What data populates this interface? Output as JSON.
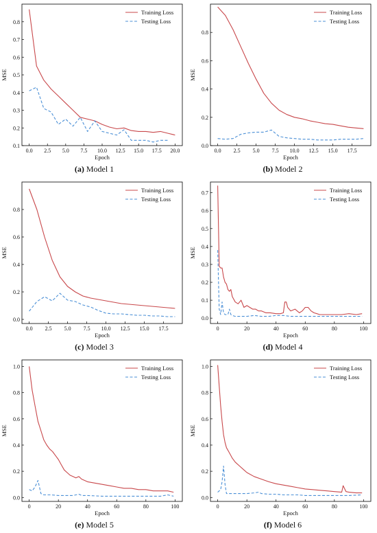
{
  "colors": {
    "training": "#c8474a",
    "testing": "#4a8fd6"
  },
  "chart_data": [
    {
      "type": "line",
      "caption_letter": "(a)",
      "caption_text": " Model 1",
      "xlabel": "Epoch",
      "ylabel": "MSE",
      "xlim": [
        -1,
        21
      ],
      "ylim": [
        0.1,
        0.9
      ],
      "xticks": [
        0.0,
        2.5,
        5.0,
        7.5,
        10.0,
        12.5,
        15.0,
        17.5,
        20.0
      ],
      "xtick_labels": [
        "0.0",
        "2.5",
        "5.0",
        "7.5",
        "10.0",
        "12.5",
        "15.0",
        "17.5",
        "20.0"
      ],
      "yticks": [
        0.1,
        0.2,
        0.3,
        0.4,
        0.5,
        0.6,
        0.7,
        0.8
      ],
      "ytick_labels": [
        "0.1",
        "0.2",
        "0.3",
        "0.4",
        "0.5",
        "0.6",
        "0.7",
        "0.8"
      ],
      "legend": "top-right",
      "series": [
        {
          "name": "Training Loss",
          "style": "solid",
          "x": [
            0,
            1,
            2,
            3,
            4,
            5,
            6,
            7,
            8,
            9,
            10,
            11,
            12,
            13,
            14,
            15,
            16,
            17,
            18,
            19,
            20
          ],
          "y": [
            0.87,
            0.55,
            0.47,
            0.42,
            0.38,
            0.34,
            0.3,
            0.26,
            0.25,
            0.24,
            0.22,
            0.205,
            0.195,
            0.2,
            0.185,
            0.18,
            0.18,
            0.175,
            0.18,
            0.17,
            0.16
          ]
        },
        {
          "name": "Testing Loss",
          "style": "dashed",
          "x": [
            0,
            1,
            2,
            3,
            4,
            5,
            6,
            7,
            8,
            9,
            10,
            11,
            12,
            13,
            14,
            15,
            16,
            17,
            18,
            19
          ],
          "y": [
            0.41,
            0.43,
            0.31,
            0.29,
            0.22,
            0.25,
            0.21,
            0.26,
            0.18,
            0.24,
            0.18,
            0.17,
            0.16,
            0.19,
            0.13,
            0.13,
            0.13,
            0.12,
            0.13,
            0.13
          ]
        }
      ]
    },
    {
      "type": "line",
      "caption_letter": "(b)",
      "caption_text": " Model 2",
      "xlabel": "Epoch",
      "ylabel": "MSE",
      "xlim": [
        -0.95,
        19.95
      ],
      "ylim": [
        0.0,
        1.0
      ],
      "xticks": [
        0.0,
        2.5,
        5.0,
        7.5,
        10.0,
        12.5,
        15.0,
        17.5
      ],
      "xtick_labels": [
        "0.0",
        "2.5",
        "5.0",
        "7.5",
        "10.0",
        "12.5",
        "15.0",
        "17.5"
      ],
      "yticks": [
        0.0,
        0.2,
        0.4,
        0.6,
        0.8
      ],
      "ytick_labels": [
        "0.0",
        "0.2",
        "0.4",
        "0.6",
        "0.8"
      ],
      "legend": "top-right",
      "series": [
        {
          "name": "Training Loss",
          "style": "solid",
          "x": [
            0,
            1,
            2,
            3,
            4,
            5,
            6,
            7,
            8,
            9,
            10,
            11,
            12,
            13,
            14,
            15,
            16,
            17,
            18,
            19
          ],
          "y": [
            0.98,
            0.92,
            0.82,
            0.7,
            0.58,
            0.47,
            0.37,
            0.3,
            0.25,
            0.22,
            0.2,
            0.19,
            0.175,
            0.165,
            0.155,
            0.15,
            0.14,
            0.13,
            0.125,
            0.12
          ]
        },
        {
          "name": "Testing Loss",
          "style": "dashed",
          "x": [
            0,
            1,
            2,
            3,
            4,
            5,
            6,
            7,
            8,
            9,
            10,
            11,
            12,
            13,
            14,
            15,
            16,
            17,
            18,
            19
          ],
          "y": [
            0.05,
            0.045,
            0.05,
            0.08,
            0.09,
            0.095,
            0.095,
            0.11,
            0.065,
            0.055,
            0.05,
            0.045,
            0.045,
            0.04,
            0.04,
            0.04,
            0.045,
            0.045,
            0.045,
            0.05
          ]
        }
      ]
    },
    {
      "type": "line",
      "caption_letter": "(c)",
      "caption_text": " Model 3",
      "xlabel": "Epoch",
      "ylabel": "MSE",
      "xlim": [
        -0.95,
        19.95
      ],
      "ylim": [
        -0.03,
        1.0
      ],
      "xticks": [
        0.0,
        2.5,
        5.0,
        7.5,
        10.0,
        12.5,
        15.0,
        17.5
      ],
      "xtick_labels": [
        "0.0",
        "2.5",
        "5.0",
        "7.5",
        "10.0",
        "12.5",
        "15.0",
        "17.5"
      ],
      "yticks": [
        0.0,
        0.2,
        0.4,
        0.6,
        0.8
      ],
      "ytick_labels": [
        "0.0",
        "0.2",
        "0.4",
        "0.6",
        "0.8"
      ],
      "legend": "top-right",
      "series": [
        {
          "name": "Training Loss",
          "style": "solid",
          "x": [
            0,
            1,
            2,
            3,
            4,
            5,
            6,
            7,
            8,
            9,
            10,
            11,
            12,
            13,
            14,
            15,
            16,
            17,
            18,
            19
          ],
          "y": [
            0.95,
            0.8,
            0.6,
            0.43,
            0.31,
            0.24,
            0.2,
            0.17,
            0.155,
            0.145,
            0.135,
            0.125,
            0.115,
            0.11,
            0.105,
            0.1,
            0.095,
            0.09,
            0.085,
            0.08
          ]
        },
        {
          "name": "Testing Loss",
          "style": "dashed",
          "x": [
            0,
            1,
            2,
            3,
            4,
            5,
            6,
            7,
            8,
            9,
            10,
            11,
            12,
            13,
            14,
            15,
            16,
            17,
            18,
            19
          ],
          "y": [
            0.06,
            0.13,
            0.165,
            0.135,
            0.19,
            0.14,
            0.13,
            0.105,
            0.09,
            0.065,
            0.045,
            0.04,
            0.04,
            0.035,
            0.03,
            0.03,
            0.025,
            0.025,
            0.02,
            0.02
          ]
        }
      ]
    },
    {
      "type": "line",
      "caption_letter": "(d)",
      "caption_text": " Model 4",
      "xlabel": "Epoch",
      "ylabel": "MSE",
      "xlim": [
        -5,
        105
      ],
      "ylim": [
        -0.03,
        0.76
      ],
      "xticks": [
        0,
        20,
        40,
        60,
        80,
        100
      ],
      "xtick_labels": [
        "0",
        "20",
        "40",
        "60",
        "80",
        "100"
      ],
      "yticks": [
        0.0,
        0.1,
        0.2,
        0.3,
        0.4,
        0.5,
        0.6,
        0.7
      ],
      "ytick_labels": [
        "0.0",
        "0.1",
        "0.2",
        "0.3",
        "0.4",
        "0.5",
        "0.6",
        "0.7"
      ],
      "legend": "top-right",
      "series": [
        {
          "name": "Training Loss",
          "style": "solid",
          "x": [
            0,
            1,
            2,
            3,
            4,
            5,
            6,
            7,
            8,
            9,
            10,
            12,
            14,
            16,
            18,
            20,
            22,
            24,
            26,
            28,
            30,
            33,
            36,
            40,
            43,
            45,
            46,
            47,
            48,
            50,
            53,
            56,
            58,
            60,
            62,
            64,
            66,
            68,
            70,
            75,
            80,
            85,
            90,
            95,
            99
          ],
          "y": [
            0.74,
            0.29,
            0.28,
            0.28,
            0.23,
            0.2,
            0.19,
            0.16,
            0.15,
            0.16,
            0.12,
            0.09,
            0.08,
            0.1,
            0.06,
            0.07,
            0.06,
            0.05,
            0.05,
            0.04,
            0.04,
            0.03,
            0.03,
            0.025,
            0.025,
            0.03,
            0.09,
            0.09,
            0.06,
            0.04,
            0.05,
            0.03,
            0.04,
            0.06,
            0.06,
            0.04,
            0.03,
            0.025,
            0.02,
            0.02,
            0.02,
            0.02,
            0.025,
            0.02,
            0.025
          ]
        },
        {
          "name": "Testing Loss",
          "style": "dashed",
          "x": [
            0,
            1,
            2,
            3,
            4,
            5,
            6,
            7,
            8,
            9,
            10,
            12,
            15,
            18,
            20,
            25,
            30,
            35,
            40,
            45,
            50,
            55,
            60,
            65,
            70,
            80,
            90,
            99
          ],
          "y": [
            0.38,
            0.05,
            0.02,
            0.09,
            0.03,
            0.02,
            0.02,
            0.02,
            0.05,
            0.02,
            0.015,
            0.01,
            0.01,
            0.01,
            0.01,
            0.015,
            0.01,
            0.01,
            0.015,
            0.015,
            0.01,
            0.01,
            0.01,
            0.01,
            0.01,
            0.01,
            0.01,
            0.01
          ]
        }
      ]
    },
    {
      "type": "line",
      "caption_letter": "(e)",
      "caption_text": " Model 5",
      "xlabel": "Epoch",
      "ylabel": "MSE",
      "xlim": [
        -5,
        105
      ],
      "ylim": [
        -0.03,
        1.05
      ],
      "xticks": [
        0,
        20,
        40,
        60,
        80,
        100
      ],
      "xtick_labels": [
        "0",
        "20",
        "40",
        "60",
        "80",
        "100"
      ],
      "yticks": [
        0.0,
        0.2,
        0.4,
        0.6,
        0.8,
        1.0
      ],
      "ytick_labels": [
        "0.0",
        "0.2",
        "0.4",
        "0.6",
        "0.8",
        "1.0"
      ],
      "legend": "top-right",
      "series": [
        {
          "name": "Training Loss",
          "style": "solid",
          "x": [
            0,
            2,
            4,
            6,
            8,
            10,
            12,
            14,
            16,
            18,
            20,
            22,
            24,
            26,
            28,
            30,
            32,
            34,
            36,
            38,
            40,
            45,
            50,
            55,
            60,
            65,
            70,
            75,
            80,
            85,
            90,
            95,
            99
          ],
          "y": [
            1.0,
            0.82,
            0.7,
            0.58,
            0.51,
            0.44,
            0.4,
            0.37,
            0.35,
            0.32,
            0.29,
            0.25,
            0.21,
            0.19,
            0.17,
            0.16,
            0.15,
            0.16,
            0.14,
            0.13,
            0.12,
            0.11,
            0.1,
            0.09,
            0.08,
            0.07,
            0.07,
            0.06,
            0.06,
            0.05,
            0.05,
            0.05,
            0.04
          ]
        },
        {
          "name": "Testing Loss",
          "style": "dashed",
          "x": [
            0,
            2,
            4,
            6,
            8,
            10,
            12,
            15,
            20,
            25,
            30,
            32,
            34,
            36,
            40,
            50,
            60,
            70,
            80,
            90,
            95,
            99
          ],
          "y": [
            0.06,
            0.05,
            0.08,
            0.13,
            0.03,
            0.02,
            0.02,
            0.02,
            0.015,
            0.015,
            0.015,
            0.02,
            0.025,
            0.015,
            0.015,
            0.01,
            0.01,
            0.01,
            0.01,
            0.01,
            0.02,
            0.01
          ]
        }
      ]
    },
    {
      "type": "line",
      "caption_letter": "(f)",
      "caption_text": " Model 6",
      "xlabel": "Epoch",
      "ylabel": "MSE",
      "xlim": [
        -5,
        105
      ],
      "ylim": [
        -0.03,
        1.05
      ],
      "xticks": [
        0,
        20,
        40,
        60,
        80,
        100
      ],
      "xtick_labels": [
        "0",
        "20",
        "40",
        "60",
        "80",
        "100"
      ],
      "yticks": [
        0.0,
        0.2,
        0.4,
        0.6,
        0.8,
        1.0
      ],
      "ytick_labels": [
        "0.0",
        "0.2",
        "0.4",
        "0.6",
        "0.8",
        "1.0"
      ],
      "legend": "top-right",
      "series": [
        {
          "name": "Training Loss",
          "style": "solid",
          "x": [
            0,
            1,
            2,
            3,
            4,
            5,
            6,
            8,
            10,
            12,
            15,
            18,
            20,
            25,
            30,
            35,
            40,
            45,
            50,
            55,
            60,
            65,
            70,
            75,
            80,
            85,
            86,
            88,
            90,
            95,
            99
          ],
          "y": [
            1.01,
            0.85,
            0.7,
            0.58,
            0.48,
            0.42,
            0.38,
            0.34,
            0.3,
            0.27,
            0.24,
            0.21,
            0.19,
            0.16,
            0.14,
            0.12,
            0.105,
            0.095,
            0.085,
            0.075,
            0.065,
            0.06,
            0.055,
            0.05,
            0.045,
            0.04,
            0.09,
            0.045,
            0.04,
            0.035,
            0.035
          ]
        },
        {
          "name": "Testing Loss",
          "style": "dashed",
          "x": [
            0,
            2,
            3,
            4,
            5,
            6,
            8,
            10,
            15,
            20,
            25,
            28,
            30,
            35,
            40,
            45,
            50,
            55,
            60,
            70,
            80,
            90,
            99
          ],
          "y": [
            0.04,
            0.06,
            0.12,
            0.24,
            0.1,
            0.03,
            0.03,
            0.03,
            0.03,
            0.03,
            0.035,
            0.04,
            0.03,
            0.025,
            0.025,
            0.02,
            0.02,
            0.02,
            0.015,
            0.015,
            0.015,
            0.015,
            0.02
          ]
        }
      ]
    }
  ]
}
